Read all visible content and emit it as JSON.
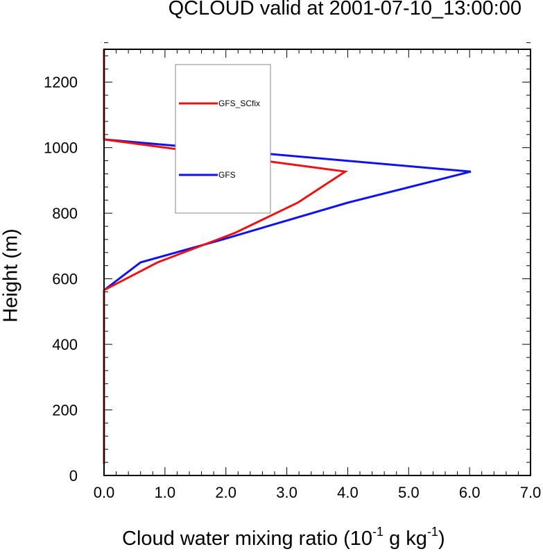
{
  "chart_data": {
    "type": "line",
    "title": "QCLOUD valid at 2001-07-10_13:00:00",
    "xlabel": {
      "prefix": "Cloud water mixing ratio (10",
      "exp1": "-1",
      "mid": " g kg",
      "exp2": "-1",
      "suffix": ")"
    },
    "ylabel": "Height (m)",
    "xlim": [
      0,
      7
    ],
    "ylim": [
      0,
      1300
    ],
    "x_ticks": [
      "0.0",
      "1.0",
      "2.0",
      "3.0",
      "4.0",
      "5.0",
      "6.0",
      "7.0"
    ],
    "x_tick_values": [
      0,
      1,
      2,
      3,
      4,
      5,
      6,
      7
    ],
    "y_ticks": [
      "0",
      "200",
      "400",
      "600",
      "800",
      "1000",
      "1200"
    ],
    "y_tick_values": [
      0,
      200,
      400,
      600,
      800,
      1000,
      1200
    ],
    "legend_position": "upper-left-inside",
    "series": [
      {
        "name": "GFS_SCfix",
        "color": "#ee1111",
        "points": [
          [
            0,
            35
          ],
          [
            0,
            100
          ],
          [
            0,
            200
          ],
          [
            0,
            300
          ],
          [
            0,
            400
          ],
          [
            0,
            500
          ],
          [
            0,
            565
          ],
          [
            0.88,
            650
          ],
          [
            2.15,
            740
          ],
          [
            3.18,
            832
          ],
          [
            3.96,
            927
          ],
          [
            0,
            1025
          ],
          [
            0,
            1100
          ],
          [
            0,
            1200
          ],
          [
            0,
            1300
          ]
        ]
      },
      {
        "name": "GFS",
        "color": "#1111ee",
        "points": [
          [
            0,
            35
          ],
          [
            0,
            100
          ],
          [
            0,
            200
          ],
          [
            0,
            300
          ],
          [
            0,
            400
          ],
          [
            0,
            500
          ],
          [
            0,
            565
          ],
          [
            0.6,
            650
          ],
          [
            1.95,
            720
          ],
          [
            4.0,
            832
          ],
          [
            6.02,
            927
          ],
          [
            0,
            1025
          ],
          [
            0,
            1100
          ],
          [
            0,
            1200
          ],
          [
            0,
            1300
          ]
        ]
      }
    ]
  }
}
